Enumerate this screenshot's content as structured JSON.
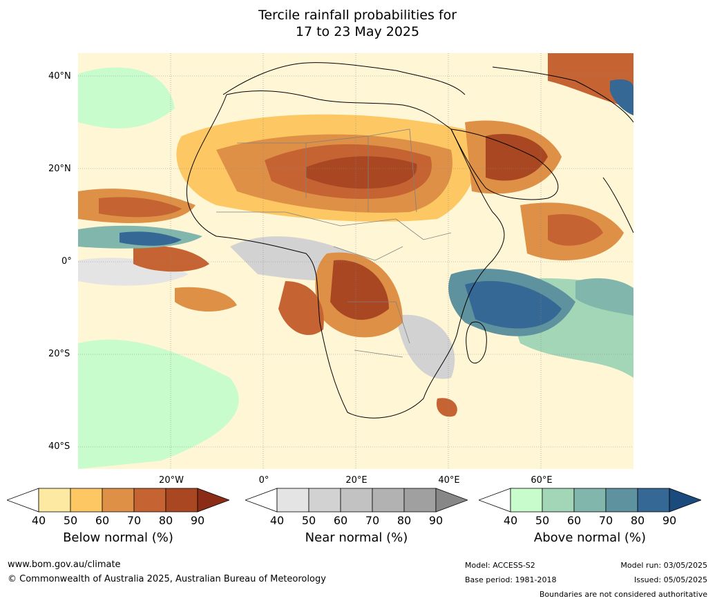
{
  "title": {
    "line1": "Tercile rainfall probabilities for",
    "line2": "17 to 23 May 2025"
  },
  "map": {
    "lat_labels": [
      "40°N",
      "20°N",
      "0°",
      "20°S",
      "40°S"
    ],
    "lon_labels": [
      "20°W",
      "0°",
      "20°E",
      "40°E",
      "60°E"
    ],
    "ocean_color": "#ffffff",
    "coastline_color": "#000000",
    "border_color": "#808080"
  },
  "legend": {
    "ticks": [
      "40",
      "50",
      "60",
      "70",
      "80",
      "90"
    ],
    "below": {
      "label": "Below normal (%)",
      "colors": [
        "#ffffff",
        "#fee9a3",
        "#fdc863",
        "#de9046",
        "#c66332",
        "#a94723",
        "#8b2d16"
      ]
    },
    "near": {
      "label": "Near normal (%)",
      "colors": [
        "#ffffff",
        "#e4e4e4",
        "#d2d2d2",
        "#c2c2c2",
        "#b2b2b2",
        "#a0a0a0",
        "#878787"
      ]
    },
    "above": {
      "label": "Above normal (%)",
      "colors": [
        "#ffffff",
        "#c9fccd",
        "#a2d6b7",
        "#80b6ab",
        "#5d929e",
        "#356894",
        "#1b4a7d"
      ]
    }
  },
  "footer": {
    "website": "www.bom.gov.au/climate",
    "copyright": "© Commonwealth of Australia 2025, Australian Bureau of Meteorology",
    "model": "Model: ACCESS-S2",
    "base_period": "Base period: 1981-2018",
    "model_run": "Model run: 03/05/2025",
    "issued": "Issued: 05/05/2025",
    "disclaimer": "Boundaries are not considered authoritative"
  }
}
